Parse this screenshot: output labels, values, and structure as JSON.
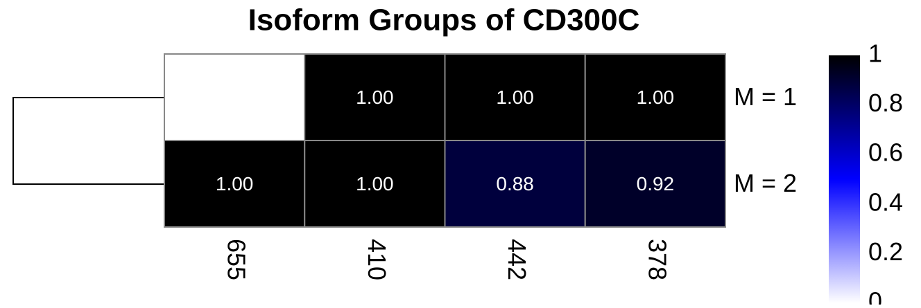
{
  "chart_data": {
    "type": "heatmap",
    "title": "Isoform Groups of CD300C",
    "rows": [
      "M = 1",
      "M = 2"
    ],
    "columns": [
      "655",
      "410",
      "442",
      "378"
    ],
    "values": [
      [
        null,
        1,
        1,
        1
      ],
      [
        1,
        1,
        0.88,
        0.92
      ]
    ],
    "value_labels": [
      [
        null,
        "1.00",
        "1.00",
        "1.00"
      ],
      [
        "1.00",
        "1.00",
        "0.88",
        "0.92"
      ]
    ],
    "colors": [
      "#ffffff",
      "#0000ff",
      "#000000"
    ],
    "zlim": [
      0,
      1
    ],
    "zticks": [
      0,
      0.2,
      0.4,
      0.6,
      0.8,
      1
    ],
    "cell_border": "#888888"
  }
}
